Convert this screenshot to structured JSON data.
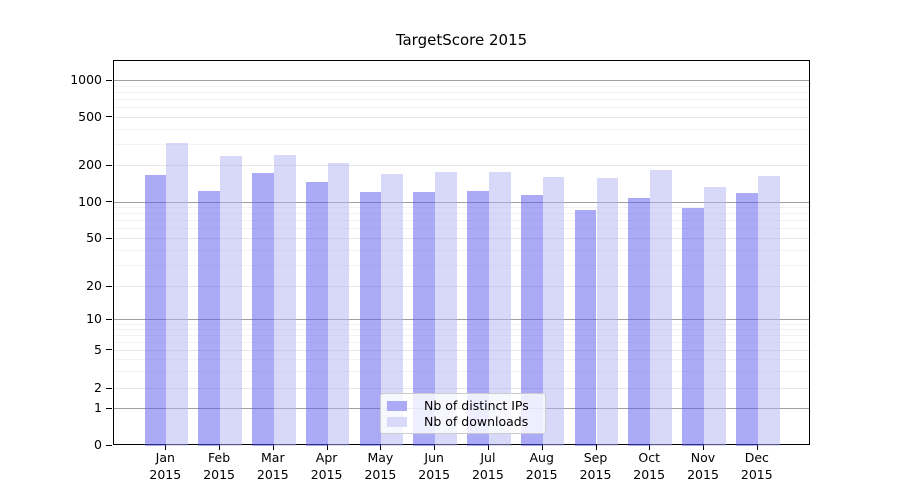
{
  "figure": {
    "background_color": "#ffffff",
    "title": "TargetScore 2015"
  },
  "chart_data": {
    "type": "bar",
    "title": "TargetScore 2015",
    "categories": [
      "Jan",
      "Feb",
      "Mar",
      "Apr",
      "May",
      "Jun",
      "Jul",
      "Aug",
      "Sep",
      "Oct",
      "Nov",
      "Dec"
    ],
    "x_year_label": "2015",
    "series": [
      {
        "name": "Nb of distinct IPs",
        "color": "rgba(85,85,239,0.5)",
        "legend_color": "#aaaaf7",
        "values": [
          170,
          125,
          174,
          148,
          122,
          123,
          125,
          115,
          86,
          110,
          90,
          121
        ]
      },
      {
        "name": "Nb of downloads",
        "color": "rgba(177,177,241,0.5)",
        "legend_color": "#d8d8f8",
        "values": [
          310,
          240,
          246,
          210,
          171,
          179,
          177,
          163,
          158,
          185,
          135,
          167
        ]
      }
    ],
    "xlabel": "",
    "ylabel": "",
    "y_axis": {
      "scale": "symlog",
      "tick_values": [
        0,
        1,
        2,
        5,
        10,
        20,
        50,
        100,
        200,
        500,
        1000
      ],
      "tick_labels": [
        "0",
        "1",
        "2",
        "5",
        "10",
        "20",
        "50",
        "100",
        "200",
        "500",
        "1000"
      ],
      "range": [
        0,
        1400
      ]
    },
    "grid": {
      "enabled": true,
      "major_values": [
        1,
        10,
        100,
        1000
      ],
      "major_color": "#a0a0a0",
      "labeled_minor_values": [
        2,
        5,
        20,
        50,
        200,
        500
      ],
      "labeled_minor_color": "#e6e6e6",
      "minor_values": [
        3,
        4,
        6,
        7,
        8,
        9,
        30,
        40,
        60,
        70,
        80,
        90,
        300,
        400,
        600,
        700,
        800,
        900
      ],
      "minor_color": "#f2f2f2"
    },
    "legend": {
      "position": "lower center",
      "entries": [
        "Nb of distinct IPs",
        "Nb of downloads"
      ]
    }
  }
}
